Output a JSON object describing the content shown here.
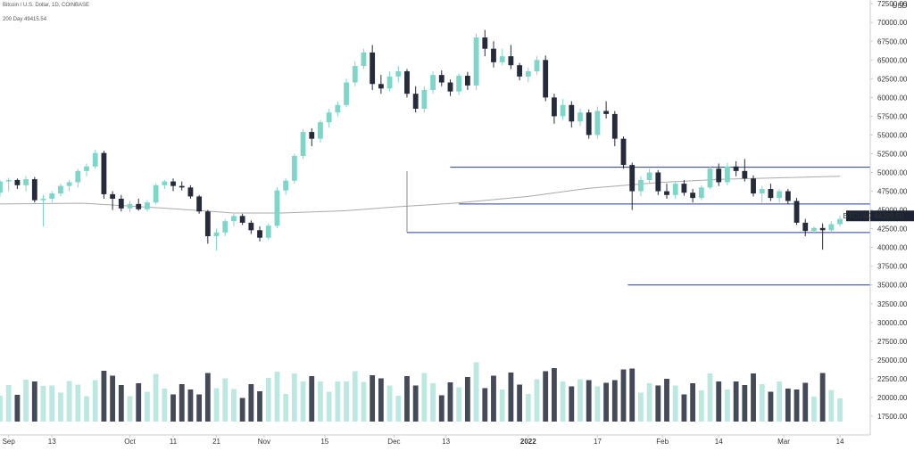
{
  "header": {
    "symbol_line": "Bitcoin / U.S. Dollar, 1D, COINBASE",
    "ma_line": "200 Day  49415.54"
  },
  "colors": {
    "up": "#7dd6c8",
    "down": "#252b3b",
    "vol_up": "#bde8e2",
    "vol_down": "#454a58",
    "ma": "#aaaaaa",
    "hline": "#2a3a8c",
    "price_tag_bg": "#1c2333",
    "price_tag_text": "#ffffff",
    "axis": "#333333",
    "axis_line": "#cccccc"
  },
  "chart_data": {
    "type": "candlestick",
    "symbol": "BTCUSD",
    "last_price": "44209.50",
    "y_axis": {
      "unit": "USD",
      "min": 15000,
      "max": 73000,
      "tick_labels": [
        "72500.00",
        "70000.00",
        "67500.00",
        "65000.00",
        "62500.00",
        "60000.00",
        "57500.00",
        "55000.00",
        "52500.00",
        "50000.00",
        "47500.00",
        "45000.00",
        "42500.00",
        "40000.00",
        "37500.00",
        "35000.00",
        "32500.00",
        "30000.00",
        "27500.00",
        "25000.00",
        "22500.00",
        "20000.00",
        "17500.00"
      ]
    },
    "x_axis": {
      "start": "2021-09-01",
      "end": "2022-03-21",
      "tick_labels": [
        {
          "date": "2021-09-03",
          "label": "Sep",
          "bold": false
        },
        {
          "date": "2021-09-13",
          "label": "13",
          "bold": false
        },
        {
          "date": "2021-10-01",
          "label": "Oct",
          "bold": false
        },
        {
          "date": "2021-10-11",
          "label": "11",
          "bold": false
        },
        {
          "date": "2021-10-21",
          "label": "21",
          "bold": false
        },
        {
          "date": "2021-11-01",
          "label": "Nov",
          "bold": false
        },
        {
          "date": "2021-11-15",
          "label": "15",
          "bold": false
        },
        {
          "date": "2021-12-01",
          "label": "Dec",
          "bold": false
        },
        {
          "date": "2021-12-13",
          "label": "13",
          "bold": false
        },
        {
          "date": "2022-01-01",
          "label": "2022",
          "bold": true
        },
        {
          "date": "2022-01-17",
          "label": "17",
          "bold": false
        },
        {
          "date": "2022-02-01",
          "label": "Feb",
          "bold": false
        },
        {
          "date": "2022-02-14",
          "label": "14",
          "bold": false
        },
        {
          "date": "2022-03-01",
          "label": "Mar",
          "bold": false
        },
        {
          "date": "2022-03-14",
          "label": "14",
          "bold": false
        }
      ]
    },
    "candles": [
      {
        "date": "2021-09-01",
        "o": 47300,
        "h": 49000,
        "l": 46800,
        "c": 48800
      },
      {
        "date": "2021-09-03",
        "o": 48800,
        "h": 49300,
        "l": 47500,
        "c": 49000
      },
      {
        "date": "2021-09-05",
        "o": 49000,
        "h": 49200,
        "l": 47800,
        "c": 48300
      },
      {
        "date": "2021-09-07",
        "o": 48300,
        "h": 49500,
        "l": 47500,
        "c": 49100
      },
      {
        "date": "2021-09-09",
        "o": 49100,
        "h": 49400,
        "l": 46000,
        "c": 46300
      },
      {
        "date": "2021-09-11",
        "o": 46300,
        "h": 47000,
        "l": 42800,
        "c": 46500
      },
      {
        "date": "2021-09-13",
        "o": 46500,
        "h": 47500,
        "l": 46000,
        "c": 47200
      },
      {
        "date": "2021-09-15",
        "o": 47200,
        "h": 48500,
        "l": 46800,
        "c": 48200
      },
      {
        "date": "2021-09-17",
        "o": 48200,
        "h": 49000,
        "l": 47500,
        "c": 48700
      },
      {
        "date": "2021-09-19",
        "o": 48700,
        "h": 50500,
        "l": 48000,
        "c": 50200
      },
      {
        "date": "2021-09-21",
        "o": 50200,
        "h": 51200,
        "l": 49500,
        "c": 50800
      },
      {
        "date": "2021-09-23",
        "o": 50800,
        "h": 53000,
        "l": 50500,
        "c": 52600
      },
      {
        "date": "2021-09-25",
        "o": 52600,
        "h": 52900,
        "l": 46500,
        "c": 47100
      },
      {
        "date": "2021-09-27",
        "o": 47100,
        "h": 47500,
        "l": 45000,
        "c": 46500
      },
      {
        "date": "2021-09-29",
        "o": 46500,
        "h": 47000,
        "l": 44800,
        "c": 45200
      },
      {
        "date": "2021-10-01",
        "o": 45200,
        "h": 46200,
        "l": 44700,
        "c": 45800
      },
      {
        "date": "2021-10-03",
        "o": 45800,
        "h": 46500,
        "l": 44900,
        "c": 45100
      },
      {
        "date": "2021-10-05",
        "o": 45100,
        "h": 46300,
        "l": 44800,
        "c": 46000
      },
      {
        "date": "2021-10-07",
        "o": 46000,
        "h": 48500,
        "l": 45800,
        "c": 48300
      },
      {
        "date": "2021-10-09",
        "o": 48300,
        "h": 49000,
        "l": 47800,
        "c": 48800
      },
      {
        "date": "2021-10-11",
        "o": 48800,
        "h": 49200,
        "l": 47500,
        "c": 48200
      },
      {
        "date": "2021-10-13",
        "o": 48200,
        "h": 48800,
        "l": 47600,
        "c": 48000
      },
      {
        "date": "2021-10-15",
        "o": 48000,
        "h": 48300,
        "l": 46500,
        "c": 46800
      },
      {
        "date": "2021-10-17",
        "o": 46800,
        "h": 47000,
        "l": 44500,
        "c": 44800
      },
      {
        "date": "2021-10-19",
        "o": 44800,
        "h": 45000,
        "l": 40500,
        "c": 41500
      },
      {
        "date": "2021-10-21",
        "o": 41500,
        "h": 42500,
        "l": 39600,
        "c": 42000
      },
      {
        "date": "2021-10-23",
        "o": 42000,
        "h": 43800,
        "l": 41500,
        "c": 43500
      },
      {
        "date": "2021-10-25",
        "o": 43500,
        "h": 44500,
        "l": 42800,
        "c": 44200
      },
      {
        "date": "2021-10-27",
        "o": 44200,
        "h": 44500,
        "l": 43000,
        "c": 43300
      },
      {
        "date": "2021-10-29",
        "o": 43300,
        "h": 43600,
        "l": 41800,
        "c": 42300
      },
      {
        "date": "2021-10-31",
        "o": 42300,
        "h": 42800,
        "l": 40800,
        "c": 41300
      },
      {
        "date": "2021-11-02",
        "o": 41300,
        "h": 43200,
        "l": 41000,
        "c": 42900
      },
      {
        "date": "2021-11-04",
        "o": 42900,
        "h": 48000,
        "l": 42600,
        "c": 47600
      },
      {
        "date": "2021-11-06",
        "o": 47600,
        "h": 49200,
        "l": 47000,
        "c": 48900
      },
      {
        "date": "2021-11-08",
        "o": 48900,
        "h": 52500,
        "l": 48500,
        "c": 52200
      },
      {
        "date": "2021-11-10",
        "o": 52200,
        "h": 55800,
        "l": 51800,
        "c": 55400
      },
      {
        "date": "2021-11-12",
        "o": 55400,
        "h": 55900,
        "l": 53500,
        "c": 54500
      },
      {
        "date": "2021-11-14",
        "o": 54500,
        "h": 57000,
        "l": 54000,
        "c": 56700
      },
      {
        "date": "2021-11-16",
        "o": 56700,
        "h": 58500,
        "l": 56000,
        "c": 58000
      },
      {
        "date": "2021-11-18",
        "o": 58000,
        "h": 59500,
        "l": 57500,
        "c": 59000
      },
      {
        "date": "2021-11-20",
        "o": 59000,
        "h": 62500,
        "l": 58700,
        "c": 62000
      },
      {
        "date": "2021-11-22",
        "o": 62000,
        "h": 64800,
        "l": 61500,
        "c": 64200
      },
      {
        "date": "2021-11-24",
        "o": 64200,
        "h": 66500,
        "l": 63800,
        "c": 66000
      },
      {
        "date": "2021-11-26",
        "o": 66000,
        "h": 67000,
        "l": 61000,
        "c": 61800
      },
      {
        "date": "2021-11-28",
        "o": 61800,
        "h": 63000,
        "l": 60500,
        "c": 61200
      },
      {
        "date": "2021-11-30",
        "o": 61200,
        "h": 63500,
        "l": 60800,
        "c": 62800
      },
      {
        "date": "2021-12-02",
        "o": 62800,
        "h": 64200,
        "l": 62000,
        "c": 63500
      },
      {
        "date": "2021-12-04",
        "o": 63500,
        "h": 63800,
        "l": 60000,
        "c": 60500
      },
      {
        "date": "2021-12-06",
        "o": 60500,
        "h": 61500,
        "l": 58000,
        "c": 58500
      },
      {
        "date": "2021-12-08",
        "o": 58500,
        "h": 61500,
        "l": 58000,
        "c": 61000
      },
      {
        "date": "2021-12-10",
        "o": 61000,
        "h": 63500,
        "l": 60500,
        "c": 63000
      },
      {
        "date": "2021-12-12",
        "o": 63000,
        "h": 63600,
        "l": 61500,
        "c": 62000
      },
      {
        "date": "2021-12-14",
        "o": 62000,
        "h": 62400,
        "l": 60200,
        "c": 60800
      },
      {
        "date": "2021-12-16",
        "o": 60800,
        "h": 63200,
        "l": 60300,
        "c": 62900
      },
      {
        "date": "2021-12-18",
        "o": 62900,
        "h": 63400,
        "l": 61000,
        "c": 61600
      },
      {
        "date": "2021-12-20",
        "o": 61600,
        "h": 68500,
        "l": 61000,
        "c": 68000
      },
      {
        "date": "2021-12-22",
        "o": 68000,
        "h": 69000,
        "l": 65500,
        "c": 66500
      },
      {
        "date": "2021-12-24",
        "o": 66500,
        "h": 67500,
        "l": 64000,
        "c": 64700
      },
      {
        "date": "2021-12-26",
        "o": 64700,
        "h": 66500,
        "l": 64300,
        "c": 65500
      },
      {
        "date": "2021-12-28",
        "o": 65500,
        "h": 67000,
        "l": 63800,
        "c": 64300
      },
      {
        "date": "2021-12-30",
        "o": 64300,
        "h": 64600,
        "l": 62300,
        "c": 62800
      },
      {
        "date": "2022-01-01",
        "o": 62800,
        "h": 64000,
        "l": 62000,
        "c": 63500
      },
      {
        "date": "2022-01-03",
        "o": 63500,
        "h": 65500,
        "l": 63000,
        "c": 65000
      },
      {
        "date": "2022-01-05",
        "o": 65000,
        "h": 65600,
        "l": 59500,
        "c": 60000
      },
      {
        "date": "2022-01-07",
        "o": 60000,
        "h": 60500,
        "l": 56500,
        "c": 57500
      },
      {
        "date": "2022-01-09",
        "o": 57500,
        "h": 59800,
        "l": 57000,
        "c": 59000
      },
      {
        "date": "2022-01-11",
        "o": 59000,
        "h": 59500,
        "l": 56000,
        "c": 56800
      },
      {
        "date": "2022-01-13",
        "o": 56800,
        "h": 58500,
        "l": 56200,
        "c": 58000
      },
      {
        "date": "2022-01-15",
        "o": 58000,
        "h": 58400,
        "l": 54500,
        "c": 55000
      },
      {
        "date": "2022-01-17",
        "o": 55000,
        "h": 58800,
        "l": 54500,
        "c": 58200
      },
      {
        "date": "2022-01-19",
        "o": 58200,
        "h": 59500,
        "l": 57200,
        "c": 57800
      },
      {
        "date": "2022-01-21",
        "o": 57800,
        "h": 58200,
        "l": 53500,
        "c": 54500
      },
      {
        "date": "2022-01-23",
        "o": 54500,
        "h": 54800,
        "l": 50500,
        "c": 51000
      },
      {
        "date": "2022-01-25",
        "o": 51000,
        "h": 51300,
        "l": 45000,
        "c": 47500
      },
      {
        "date": "2022-01-27",
        "o": 47500,
        "h": 49500,
        "l": 46800,
        "c": 49000
      },
      {
        "date": "2022-01-29",
        "o": 49000,
        "h": 50500,
        "l": 48500,
        "c": 50000
      },
      {
        "date": "2022-01-31",
        "o": 50000,
        "h": 50300,
        "l": 47000,
        "c": 47500
      },
      {
        "date": "2022-02-02",
        "o": 47500,
        "h": 48500,
        "l": 46500,
        "c": 47000
      },
      {
        "date": "2022-02-04",
        "o": 47000,
        "h": 48800,
        "l": 46500,
        "c": 48500
      },
      {
        "date": "2022-02-06",
        "o": 48500,
        "h": 49000,
        "l": 46900,
        "c": 47300
      },
      {
        "date": "2022-02-08",
        "o": 47300,
        "h": 47800,
        "l": 46000,
        "c": 46600
      },
      {
        "date": "2022-02-10",
        "o": 46600,
        "h": 48300,
        "l": 46300,
        "c": 48000
      },
      {
        "date": "2022-02-12",
        "o": 48000,
        "h": 50800,
        "l": 47800,
        "c": 50500
      },
      {
        "date": "2022-02-14",
        "o": 50500,
        "h": 51200,
        "l": 48200,
        "c": 48700
      },
      {
        "date": "2022-02-16",
        "o": 48700,
        "h": 51300,
        "l": 48300,
        "c": 50800
      },
      {
        "date": "2022-02-18",
        "o": 50800,
        "h": 51500,
        "l": 49500,
        "c": 50200
      },
      {
        "date": "2022-02-20",
        "o": 50200,
        "h": 51800,
        "l": 48800,
        "c": 49200
      },
      {
        "date": "2022-02-22",
        "o": 49200,
        "h": 49600,
        "l": 46800,
        "c": 47200
      },
      {
        "date": "2022-02-24",
        "o": 47200,
        "h": 48200,
        "l": 46000,
        "c": 47800
      },
      {
        "date": "2022-02-26",
        "o": 47800,
        "h": 48500,
        "l": 46200,
        "c": 46600
      },
      {
        "date": "2022-02-28",
        "o": 46600,
        "h": 47800,
        "l": 46000,
        "c": 47500
      },
      {
        "date": "2022-03-02",
        "o": 47500,
        "h": 47800,
        "l": 45800,
        "c": 46200
      },
      {
        "date": "2022-03-04",
        "o": 46200,
        "h": 46600,
        "l": 43000,
        "c": 43300
      },
      {
        "date": "2022-03-06",
        "o": 43300,
        "h": 43800,
        "l": 41500,
        "c": 42200
      },
      {
        "date": "2022-03-08",
        "o": 42200,
        "h": 42800,
        "l": 41800,
        "c": 42600
      },
      {
        "date": "2022-03-10",
        "o": 42600,
        "h": 43200,
        "l": 39700,
        "c": 42300
      },
      {
        "date": "2022-03-12",
        "o": 42300,
        "h": 43500,
        "l": 42000,
        "c": 43100
      },
      {
        "date": "2022-03-14",
        "o": 43100,
        "h": 44200,
        "l": 42800,
        "c": 43800
      }
    ],
    "volumes": []
  },
  "overlays": {
    "ma_200": [
      {
        "date": "2021-09-01",
        "v": 45800
      },
      {
        "date": "2021-09-20",
        "v": 45900
      },
      {
        "date": "2021-10-10",
        "v": 45200
      },
      {
        "date": "2021-10-25",
        "v": 44600
      },
      {
        "date": "2021-11-05",
        "v": 44600
      },
      {
        "date": "2021-11-20",
        "v": 44900
      },
      {
        "date": "2021-12-01",
        "v": 45400
      },
      {
        "date": "2021-12-15",
        "v": 45900
      },
      {
        "date": "2022-01-01",
        "v": 46800
      },
      {
        "date": "2022-01-15",
        "v": 47900
      },
      {
        "date": "2022-02-01",
        "v": 48700
      },
      {
        "date": "2022-02-15",
        "v": 49100
      },
      {
        "date": "2022-03-01",
        "v": 49300
      },
      {
        "date": "2022-03-14",
        "v": 49500
      }
    ],
    "hlines": [
      {
        "price": 50700,
        "from": "2021-12-14",
        "to": "2022-03-21"
      },
      {
        "price": 45800,
        "from": "2021-12-16",
        "to": "2022-03-21"
      },
      {
        "price": 42000,
        "from": "2021-12-04",
        "to": "2022-03-21"
      },
      {
        "price": 35000,
        "from": "2022-01-24",
        "to": "2022-03-21"
      }
    ],
    "vline": {
      "date": "2021-12-04",
      "from": 42000,
      "to": 50200
    }
  }
}
